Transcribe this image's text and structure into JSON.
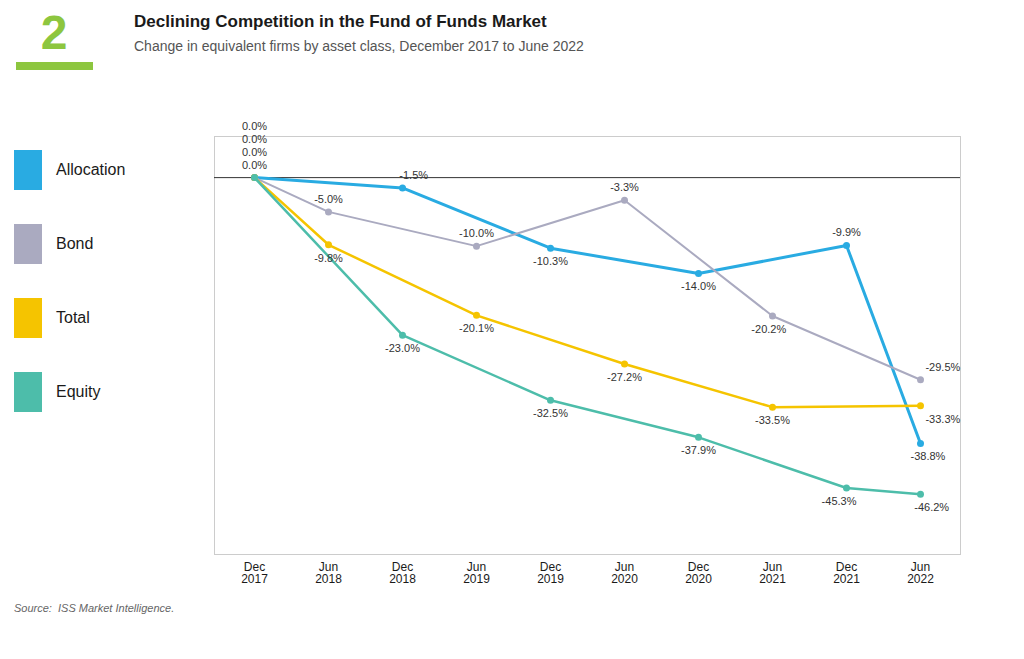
{
  "chart_data": {
    "type": "line",
    "title": "Declining Competition in the Fund of Funds Market",
    "subtitle": "Change in equivalent firms by asset class, December 2017 to June 2022",
    "source": "Source:  ISS Market Intelligence.",
    "annotations": [
      {
        "text": "2",
        "color": "#8DC63F"
      }
    ],
    "categories": [
      "Dec\n2017",
      "Jun\n2018",
      "Dec\n2018",
      "Jun\n2019",
      "Dec\n2019",
      "Jun\n2020",
      "Dec\n2020",
      "Jun\n2021",
      "Dec\n2021",
      "Jun\n2022"
    ],
    "series": [
      {
        "name": "Allocation",
        "color": "#29ABE2",
        "values": [
          0.0,
          null,
          -1.5,
          null,
          -10.3,
          null,
          -14.0,
          null,
          -9.9,
          -38.8
        ],
        "value_labels": [
          "0.0%",
          null,
          "-1.5%",
          null,
          "-10.3%",
          null,
          "-14.0%",
          null,
          "-9.9%",
          "-38.8%"
        ]
      },
      {
        "name": "Bond",
        "color": "#AAAAC0",
        "values": [
          0.0,
          -5.0,
          null,
          -10.0,
          null,
          -3.3,
          null,
          -20.2,
          null,
          -29.5
        ],
        "value_labels": [
          "0.0%",
          "-5.0%",
          null,
          "-10.0%",
          null,
          "-3.3%",
          null,
          "-20.2%",
          null,
          "-29.5%"
        ]
      },
      {
        "name": "Total",
        "color": "#F5C400",
        "values": [
          0.0,
          -9.8,
          null,
          -20.1,
          null,
          -27.2,
          null,
          -33.5,
          null,
          -33.3
        ],
        "value_labels": [
          "0.0%",
          "-9.8%",
          null,
          "-20.1%",
          null,
          "-27.2%",
          null,
          "-33.5%",
          null,
          "-33.3%"
        ]
      },
      {
        "name": "Equity",
        "color": "#4DBDAA",
        "values": [
          0.0,
          null,
          -23.0,
          null,
          -32.5,
          null,
          -37.9,
          null,
          -45.3,
          -46.2
        ],
        "value_labels": [
          "0.0%",
          null,
          "-23.0%",
          null,
          "-32.5%",
          null,
          "-37.9%",
          null,
          "-45.3%",
          "-46.2%"
        ]
      }
    ],
    "ylim": [
      -55,
      6
    ],
    "yticks": [],
    "tick_labels": "x",
    "data_labels": true,
    "grid": false,
    "legend": "left",
    "marker": "circle"
  }
}
